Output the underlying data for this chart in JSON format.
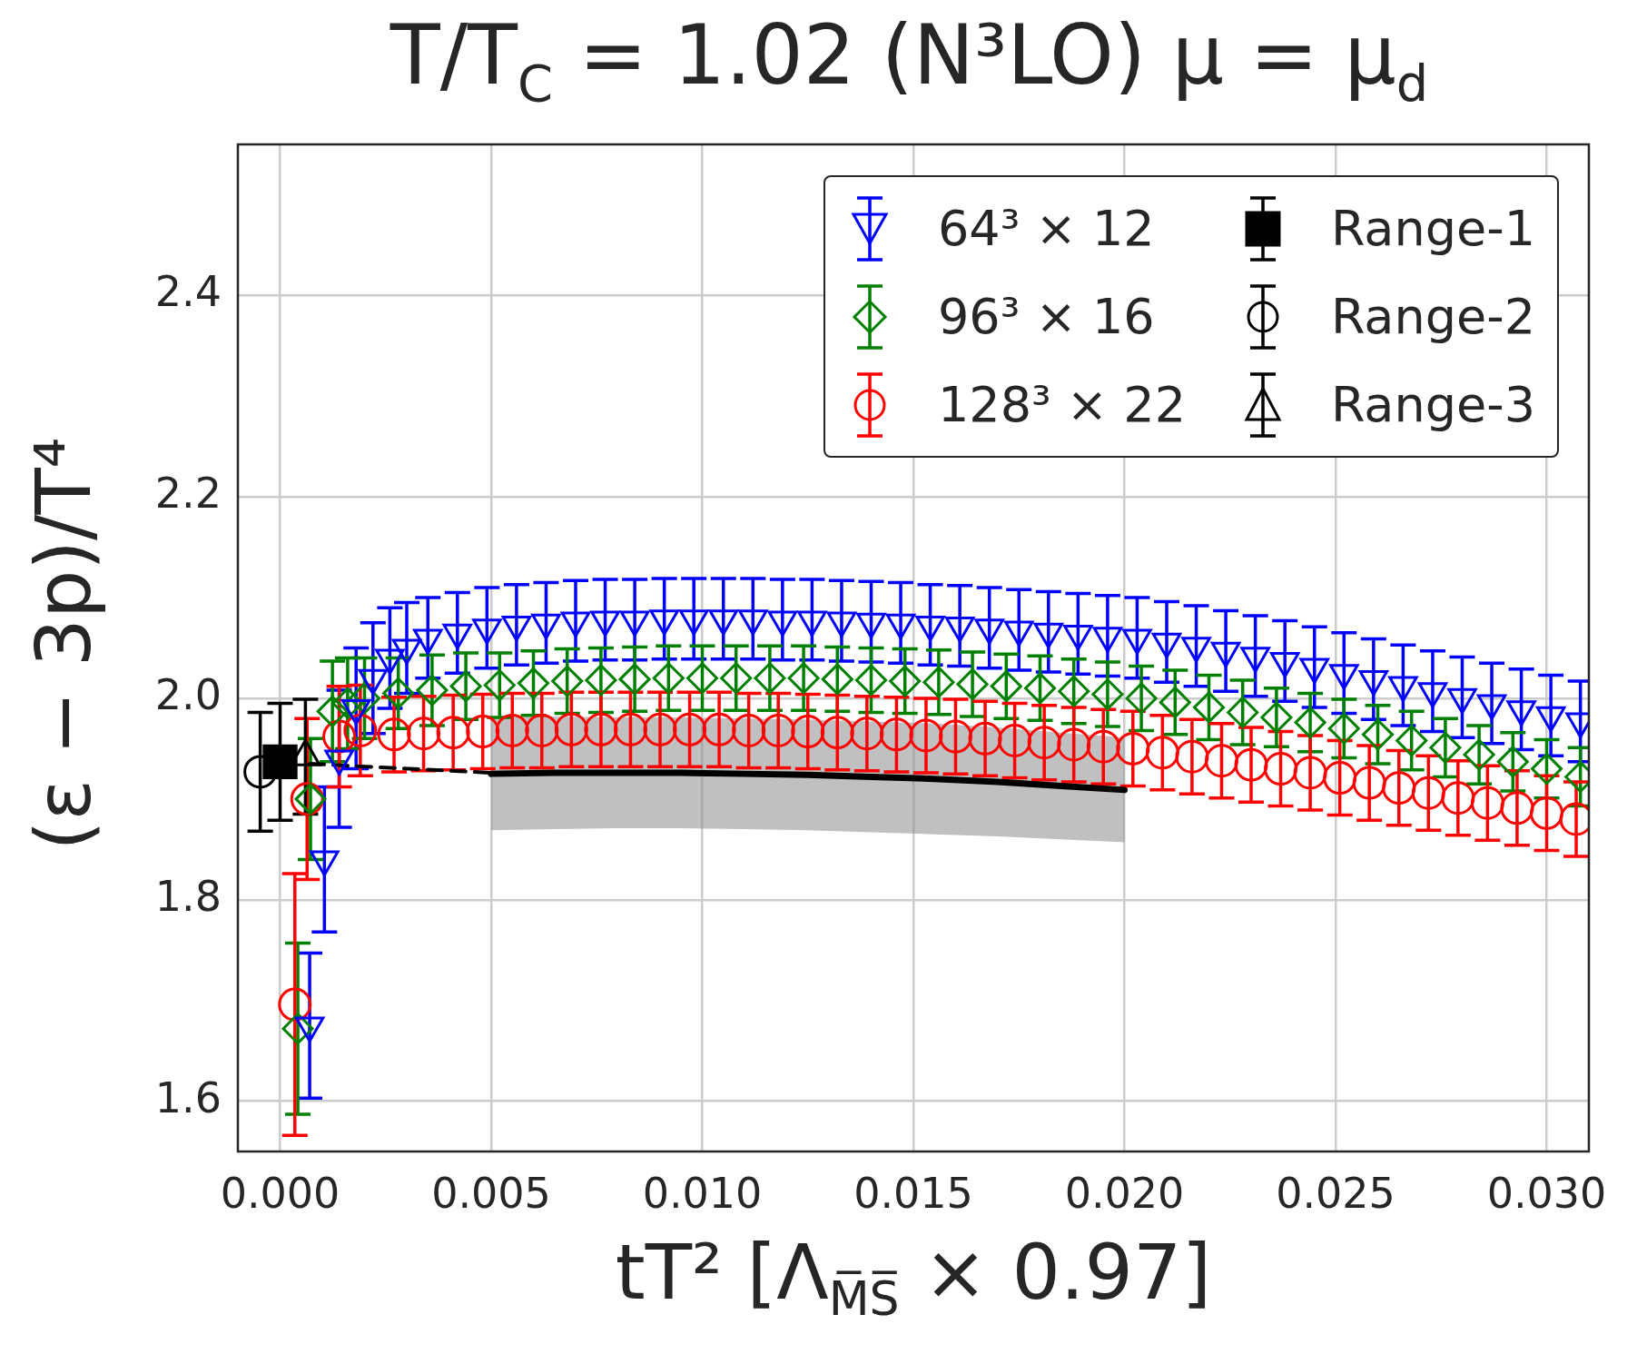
{
  "chart_data": {
    "type": "scatter",
    "title": "T/T$_{C}$ = 1.02 (N³LO) μ = μ$_{d}$",
    "xlabel": "tT² [Λ$_{M̅S̅}$ × 0.97]",
    "ylabel": "(ε − 3p)/T⁴",
    "xlim": [
      -0.001,
      0.031
    ],
    "ylim": [
      1.55,
      2.55
    ],
    "xticks": [
      {
        "value": 0,
        "label": "0.000"
      },
      {
        "value": 0.005,
        "label": "0.005"
      },
      {
        "value": 0.01,
        "label": "0.010"
      },
      {
        "value": 0.015,
        "label": "0.015"
      },
      {
        "value": 0.02,
        "label": "0.020"
      },
      {
        "value": 0.025,
        "label": "0.025"
      },
      {
        "value": 0.03,
        "label": "0.030"
      }
    ],
    "yticks": [
      1.6,
      1.8,
      {
        "value": 2,
        "label": "2.0"
      },
      2.2,
      2.4
    ],
    "grid": true,
    "legend": "top right",
    "series": [
      {
        "name": "64³ × 12",
        "color": "#0000ff",
        "marker": "triangle-down",
        "x": [
          0.0007,
          0.00105,
          0.0014,
          0.0018,
          0.0022,
          0.0026,
          0.003,
          0.0035,
          0.0042,
          0.0049,
          0.0056,
          0.0063,
          0.007,
          0.0077,
          0.0084,
          0.0091,
          0.0098,
          0.0105,
          0.0112,
          0.0119,
          0.0126,
          0.0133,
          0.014,
          0.0147,
          0.0154,
          0.0161,
          0.0168,
          0.0175,
          0.0182,
          0.0189,
          0.0196,
          0.0203,
          0.021,
          0.0217,
          0.0224,
          0.0231,
          0.0238,
          0.0245,
          0.0252,
          0.0259,
          0.0266,
          0.0273,
          0.028,
          0.0287,
          0.0294,
          0.0301,
          0.0308
        ],
        "values": [
          1.675,
          1.84,
          1.94,
          1.99,
          2.02,
          2.04,
          2.05,
          2.06,
          2.065,
          2.07,
          2.073,
          2.075,
          2.077,
          2.078,
          2.078,
          2.079,
          2.079,
          2.079,
          2.079,
          2.078,
          2.078,
          2.077,
          2.076,
          2.075,
          2.073,
          2.072,
          2.07,
          2.068,
          2.066,
          2.064,
          2.062,
          2.06,
          2.056,
          2.052,
          2.047,
          2.042,
          2.037,
          2.031,
          2.025,
          2.019,
          2.013,
          2.007,
          2.001,
          1.995,
          1.989,
          1.983,
          1.977
        ],
        "errors": [
          0.072,
          0.072,
          0.068,
          0.06,
          0.055,
          0.05,
          0.045,
          0.04,
          0.04,
          0.04,
          0.04,
          0.04,
          0.04,
          0.04,
          0.04,
          0.04,
          0.04,
          0.04,
          0.04,
          0.04,
          0.04,
          0.04,
          0.04,
          0.04,
          0.04,
          0.04,
          0.04,
          0.04,
          0.04,
          0.04,
          0.04,
          0.04,
          0.04,
          0.04,
          0.04,
          0.04,
          0.04,
          0.04,
          0.04,
          0.04,
          0.04,
          0.04,
          0.04,
          0.04,
          0.04,
          0.04,
          0.04
        ]
      },
      {
        "name": "96³ × 16",
        "color": "#008000",
        "marker": "diamond",
        "x": [
          0.00042,
          0.00072,
          0.00124,
          0.0016,
          0.002,
          0.0028,
          0.0036,
          0.0044,
          0.0052,
          0.006,
          0.0068,
          0.0076,
          0.0084,
          0.0092,
          0.01,
          0.0108,
          0.0116,
          0.0124,
          0.0132,
          0.014,
          0.0148,
          0.0156,
          0.0164,
          0.0172,
          0.018,
          0.0188,
          0.0196,
          0.0204,
          0.0212,
          0.022,
          0.0228,
          0.0236,
          0.0244,
          0.0252,
          0.026,
          0.0268,
          0.0276,
          0.0284,
          0.0292,
          0.03,
          0.0308
        ],
        "values": [
          1.672,
          1.9,
          1.987,
          1.995,
          2.0,
          2.005,
          2.008,
          2.012,
          2.013,
          2.015,
          2.017,
          2.018,
          2.019,
          2.02,
          2.02,
          2.02,
          2.02,
          2.02,
          2.019,
          2.018,
          2.017,
          2.016,
          2.014,
          2.012,
          2.01,
          2.007,
          2.004,
          2.0,
          1.996,
          1.991,
          1.986,
          1.981,
          1.976,
          1.97,
          1.964,
          1.958,
          1.951,
          1.944,
          1.937,
          1.93,
          1.922
        ],
        "errors": [
          0.085,
          0.06,
          0.05,
          0.045,
          0.04,
          0.035,
          0.035,
          0.033,
          0.032,
          0.032,
          0.032,
          0.032,
          0.032,
          0.032,
          0.032,
          0.032,
          0.032,
          0.032,
          0.032,
          0.032,
          0.032,
          0.032,
          0.032,
          0.032,
          0.032,
          0.032,
          0.032,
          0.032,
          0.032,
          0.032,
          0.032,
          0.029,
          0.029,
          0.029,
          0.029,
          0.029,
          0.029,
          0.029,
          0.029,
          0.029,
          0.029
        ]
      },
      {
        "name": "128³ × 22",
        "color": "#ff0000",
        "marker": "circle",
        "x": [
          0.00035,
          0.00064,
          0.0014,
          0.0019,
          0.0027,
          0.0034,
          0.0041,
          0.0048,
          0.0055,
          0.0062,
          0.0069,
          0.0076,
          0.0083,
          0.009,
          0.0097,
          0.0104,
          0.0111,
          0.0118,
          0.0125,
          0.0132,
          0.0139,
          0.0146,
          0.0153,
          0.016,
          0.0167,
          0.0174,
          0.0181,
          0.0188,
          0.0195,
          0.0202,
          0.0209,
          0.0216,
          0.0223,
          0.023,
          0.0237,
          0.0244,
          0.0251,
          0.0258,
          0.0265,
          0.0272,
          0.0279,
          0.0286,
          0.0293,
          0.03,
          0.0307
        ],
        "values": [
          1.696,
          1.9,
          1.962,
          1.968,
          1.964,
          1.965,
          1.966,
          1.967,
          1.968,
          1.968,
          1.969,
          1.969,
          1.969,
          1.969,
          1.969,
          1.969,
          1.968,
          1.968,
          1.967,
          1.966,
          1.965,
          1.964,
          1.963,
          1.962,
          1.96,
          1.958,
          1.956,
          1.954,
          1.952,
          1.95,
          1.946,
          1.942,
          1.938,
          1.934,
          1.93,
          1.926,
          1.921,
          1.916,
          1.911,
          1.906,
          1.901,
          1.896,
          1.891,
          1.886,
          1.88
        ],
        "errors": [
          0.13,
          0.08,
          0.05,
          0.045,
          0.037,
          0.037,
          0.037,
          0.037,
          0.037,
          0.037,
          0.037,
          0.037,
          0.037,
          0.037,
          0.037,
          0.037,
          0.037,
          0.037,
          0.037,
          0.037,
          0.037,
          0.037,
          0.037,
          0.037,
          0.037,
          0.037,
          0.037,
          0.037,
          0.037,
          0.037,
          0.037,
          0.037,
          0.037,
          0.037,
          0.037,
          0.037,
          0.037,
          0.037,
          0.037,
          0.037,
          0.037,
          0.037,
          0.037,
          0.037,
          0.037
        ]
      },
      {
        "name": "Range-1",
        "color": "#000000",
        "marker": "square",
        "x": [
          0
        ],
        "values": [
          1.937
        ],
        "errors": [
          0.058
        ]
      },
      {
        "name": "Range-2",
        "color": "#000000",
        "marker": "circle",
        "x": [
          -0.00047
        ],
        "values": [
          1.927
        ],
        "errors": [
          0.059
        ]
      },
      {
        "name": "Range-3",
        "color": "#000000",
        "marker": "triangle",
        "x": [
          0.0006
        ],
        "values": [
          1.942
        ],
        "errors": [
          0.057
        ]
      },
      {
        "type": "line",
        "color": "#000000",
        "line_style": "solid",
        "x": [
          0.005,
          0.0065,
          0.008,
          0.0095,
          0.011,
          0.0125,
          0.014,
          0.0155,
          0.017,
          0.0185,
          0.02
        ],
        "values": [
          1.925,
          1.926,
          1.926,
          1.926,
          1.925,
          1.924,
          1.922,
          1.92,
          1.917,
          1.913,
          1.909
        ],
        "lower": [
          1.869,
          1.87,
          1.871,
          1.871,
          1.87,
          1.869,
          1.867,
          1.865,
          1.863,
          1.86,
          1.857
        ],
        "upper": [
          1.981,
          1.982,
          1.981,
          1.981,
          1.98,
          1.979,
          1.977,
          1.975,
          1.971,
          1.966,
          1.961
        ]
      },
      {
        "type": "line",
        "color": "#000000",
        "line_style": "dashed",
        "x": [
          0.0007,
          0.005
        ],
        "values": [
          1.935,
          1.926
        ]
      }
    ]
  }
}
